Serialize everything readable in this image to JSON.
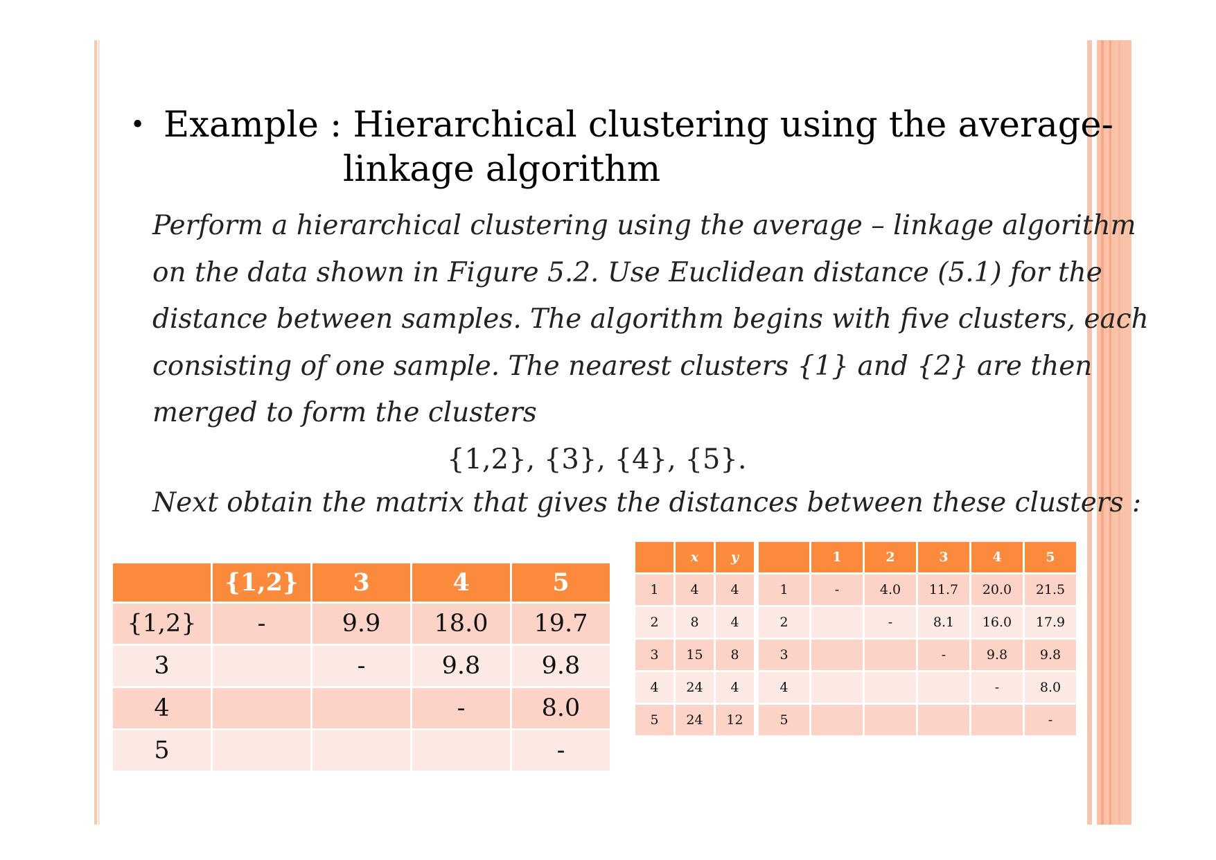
{
  "slide": {
    "bullet": "•",
    "title_line1": "Example : Hierarchical clustering using the average-",
    "title_line2": "linkage algorithm",
    "paragraph_lines": [
      "Perform a hierarchical clustering using the average – linkage algorithm",
      "on the data shown in Figure 5.2. Use Euclidean distance (5.1)  for the",
      "distance between samples. The algorithm begins with  five clusters, each",
      "consisting of  one sample. The nearest clusters {1} and {2} are then",
      "merged to  form the clusters"
    ],
    "cluster_set": "{1,2},  {3}, {4}, {5}.",
    "next_line": "Next obtain the matrix that gives the distances between these clusters :"
  },
  "merged_table": {
    "headers": [
      "",
      "{1,2}",
      "3",
      "4",
      "5"
    ],
    "rows": [
      [
        "{1,2}",
        "-",
        "9.9",
        "18.0",
        "19.7"
      ],
      [
        "3",
        "",
        "-",
        "9.8",
        "9.8"
      ],
      [
        "4",
        "",
        "",
        "-",
        "8.0"
      ],
      [
        "5",
        "",
        "",
        "",
        "-"
      ]
    ]
  },
  "coords_table": {
    "headers": [
      "",
      "x",
      "y"
    ],
    "rows": [
      [
        "1",
        "4",
        "4"
      ],
      [
        "2",
        "8",
        "4"
      ],
      [
        "3",
        "15",
        "8"
      ],
      [
        "4",
        "24",
        "4"
      ],
      [
        "5",
        "24",
        "12"
      ]
    ]
  },
  "distance_table": {
    "headers": [
      "",
      "1",
      "2",
      "3",
      "4",
      "5"
    ],
    "rows": [
      [
        "1",
        "-",
        "4.0",
        "11.7",
        "20.0",
        "21.5"
      ],
      [
        "2",
        "",
        "-",
        "8.1",
        "16.0",
        "17.9"
      ],
      [
        "3",
        "",
        "",
        "-",
        "9.8",
        "9.8"
      ],
      [
        "4",
        "",
        "",
        "",
        "-",
        "8.0"
      ],
      [
        "5",
        "",
        "",
        "",
        "",
        "-"
      ]
    ]
  },
  "colors": {
    "header_orange": "#fb8a3c",
    "row_dark": "#fcd3c6",
    "row_light": "#fde9e3",
    "rule_salmon": "#fac3a9"
  }
}
